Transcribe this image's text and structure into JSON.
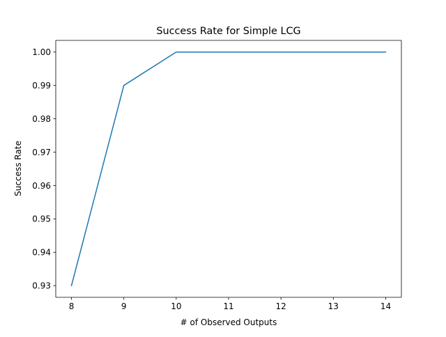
{
  "chart_data": {
    "type": "line",
    "title": "Success Rate for Simple LCG",
    "xlabel": "# of Observed Outputs",
    "ylabel": "Success Rate",
    "x": [
      8,
      9,
      10,
      11,
      12,
      13,
      14
    ],
    "series": [
      {
        "values": [
          0.93,
          0.99,
          1.0,
          1.0,
          1.0,
          1.0,
          1.0
        ],
        "color": "#1f77b4"
      }
    ],
    "xticks": [
      8,
      9,
      10,
      11,
      12,
      13,
      14
    ],
    "xtick_labels": [
      "8",
      "9",
      "10",
      "11",
      "12",
      "13",
      "14"
    ],
    "yticks": [
      0.93,
      0.94,
      0.95,
      0.96,
      0.97,
      0.98,
      0.99,
      1.0
    ],
    "ytick_labels": [
      "0.93",
      "0.94",
      "0.95",
      "0.96",
      "0.97",
      "0.98",
      "0.99",
      "1.00"
    ],
    "xlim": [
      7.7,
      14.3
    ],
    "ylim": [
      0.9265,
      1.0035
    ],
    "grid": false,
    "legend": "none"
  }
}
